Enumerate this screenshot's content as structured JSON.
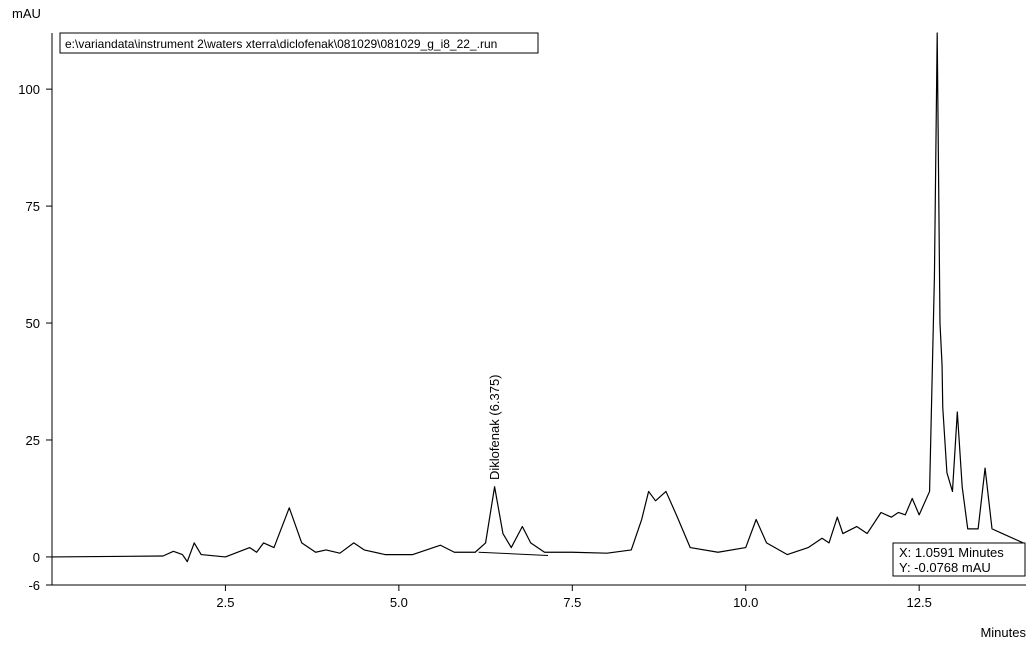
{
  "chart_data": {
    "type": "line",
    "y_label": "mAU",
    "x_label": "Minutes",
    "file_path": "e:\\variandata\\instrument 2\\waters xterra\\diclofenak\\081029\\081029_g_i8_22_.run",
    "peak_annotation": "Diklofenak (6.375)",
    "cursor_x": "X: 1.0591 Minutes",
    "cursor_y": "Y: -0.0768 mAU",
    "color": "#000000",
    "x": [
      0,
      1.6,
      1.75,
      1.88,
      1.95,
      2.05,
      2.15,
      2.5,
      2.85,
      2.95,
      3.05,
      3.2,
      3.42,
      3.6,
      3.8,
      3.95,
      4.15,
      4.35,
      4.5,
      4.8,
      5.2,
      5.6,
      5.8,
      6.1,
      6.25,
      6.38,
      6.5,
      6.62,
      6.78,
      6.9,
      7.1,
      7.5,
      8.0,
      8.35,
      8.5,
      8.6,
      8.7,
      8.85,
      9.0,
      9.2,
      9.6,
      10.0,
      10.15,
      10.3,
      10.6,
      10.9,
      11.1,
      11.2,
      11.32,
      11.4,
      11.6,
      11.75,
      11.95,
      12.1,
      12.2,
      12.3,
      12.4,
      12.5,
      12.65,
      12.72,
      12.76,
      12.8,
      12.83,
      12.84,
      12.9,
      12.98,
      13.05,
      13.12,
      13.2,
      13.35,
      13.45,
      13.55,
      13.7,
      14.0
    ],
    "values": [
      0,
      0.2,
      1.2,
      0.5,
      -1,
      3,
      0.5,
      0,
      2,
      1,
      3,
      2,
      10.5,
      3,
      1,
      1.5,
      0.8,
      3,
      1.5,
      0.5,
      0.5,
      2.5,
      1,
      1,
      3,
      15,
      5,
      2,
      6.5,
      3,
      1,
      1,
      0.8,
      1.5,
      8,
      14,
      12,
      14,
      9,
      2,
      1,
      2,
      8,
      3,
      0.5,
      2,
      4,
      3,
      8.5,
      5,
      6.5,
      5,
      9.5,
      8.5,
      9.5,
      9,
      12.5,
      9,
      14,
      60,
      112,
      50,
      41,
      32,
      18,
      14,
      31,
      15,
      6,
      6,
      19,
      6,
      5,
      3
    ],
    "integration_baseline": {
      "x": [
        6.15,
        7.15
      ],
      "values": [
        1,
        0.3
      ]
    },
    "xlim": [
      0,
      14.04
    ],
    "ylim": [
      -6,
      112
    ],
    "xticks": [
      2.5,
      {
        "value": 5,
        "label": "5.0"
      },
      7.5,
      {
        "value": 10,
        "label": "10.0"
      },
      12.5
    ],
    "yticks": [
      -6,
      0,
      25,
      50,
      75,
      100
    ]
  }
}
